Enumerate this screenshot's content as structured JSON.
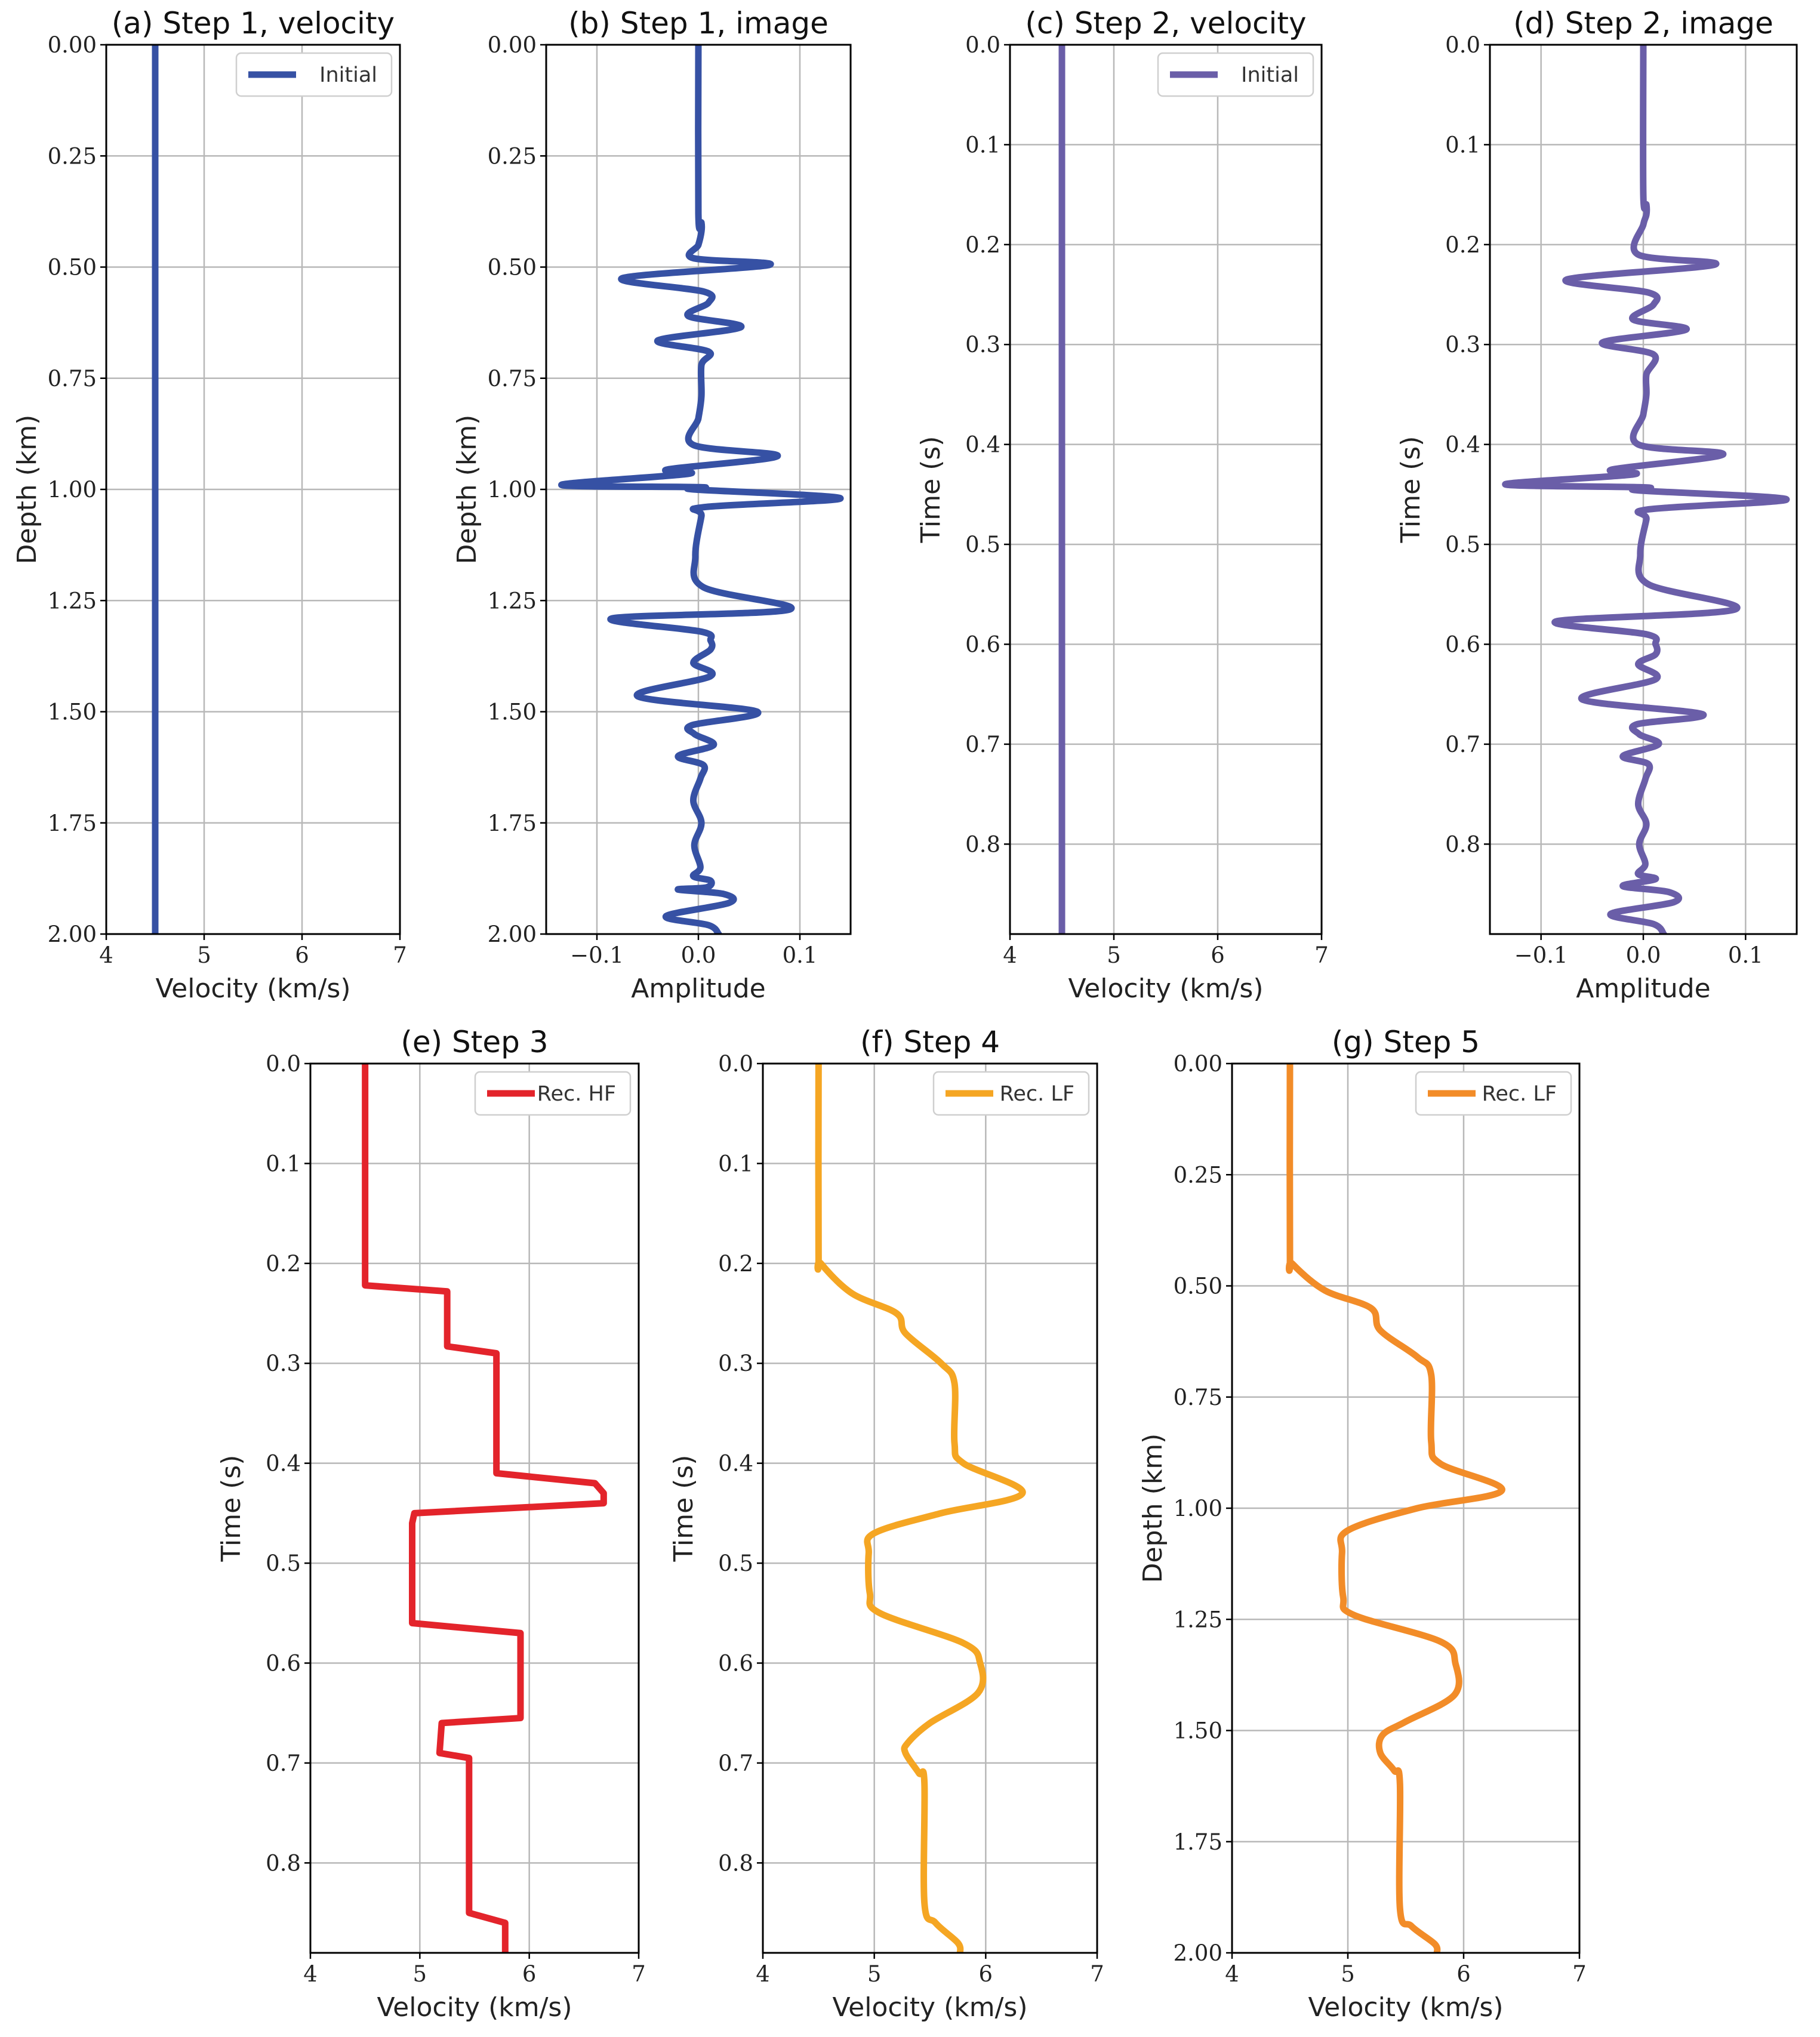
{
  "chart_data": [
    {
      "id": "a",
      "type": "line",
      "title": "(a) Step 1, velocity",
      "xlabel": "Velocity (km/s)",
      "ylabel": "Depth (km)",
      "xlim": [
        4,
        7
      ],
      "ylim": [
        0,
        2
      ],
      "invert_y": true,
      "xticks": [
        "4",
        "5",
        "6",
        "7"
      ],
      "yticks": [
        "0.00",
        "0.25",
        "0.50",
        "0.75",
        "1.00",
        "1.25",
        "1.50",
        "1.75",
        "2.00"
      ],
      "legend": "top-right",
      "grid": true,
      "series": [
        {
          "name": "Initial",
          "color": "#3651a4",
          "kind": "constant",
          "value": 4.5
        }
      ]
    },
    {
      "id": "b",
      "type": "line",
      "title": "(b) Step 1, image",
      "xlabel": "Amplitude",
      "ylabel": "Depth (km)",
      "xlim": [
        -0.15,
        0.15
      ],
      "ylim": [
        0,
        2
      ],
      "invert_y": true,
      "xticks": [
        "−0.1",
        "0.0",
        "0.1"
      ],
      "yticks": [
        "0.00",
        "0.25",
        "0.50",
        "0.75",
        "1.00",
        "1.25",
        "1.50",
        "1.75",
        "2.00"
      ],
      "grid": true,
      "series": [
        {
          "name": "",
          "color": "#3651a4",
          "kind": "wiggle",
          "points": [
            [
              0,
              0
            ],
            [
              0,
              0.38
            ],
            [
              0.003,
              0.4
            ],
            [
              0.003,
              0.42
            ],
            [
              0,
              0.45
            ],
            [
              -0.005,
              0.48
            ],
            [
              0.07,
              0.495
            ],
            [
              -0.075,
              0.525
            ],
            [
              0.005,
              0.555
            ],
            [
              0.01,
              0.58
            ],
            [
              -0.01,
              0.61
            ],
            [
              0.042,
              0.635
            ],
            [
              -0.04,
              0.665
            ],
            [
              0.01,
              0.69
            ],
            [
              0.003,
              0.72
            ],
            [
              0.003,
              0.79
            ],
            [
              0,
              0.84
            ],
            [
              -0.005,
              0.9
            ],
            [
              0.078,
              0.925
            ],
            [
              -0.03,
              0.955
            ],
            [
              -0.01,
              0.965
            ],
            [
              -0.135,
              0.99
            ],
            [
              0.002,
              0.995
            ],
            [
              -0.005,
              1.0
            ],
            [
              0.14,
              1.02
            ],
            [
              0.005,
              1.04
            ],
            [
              0.003,
              1.06
            ],
            [
              -0.003,
              1.15
            ],
            [
              0.005,
              1.22
            ],
            [
              0.09,
              1.27
            ],
            [
              -0.085,
              1.29
            ],
            [
              0.003,
              1.32
            ],
            [
              0.012,
              1.34
            ],
            [
              0.012,
              1.36
            ],
            [
              -0.005,
              1.39
            ],
            [
              0.012,
              1.42
            ],
            [
              -0.06,
              1.465
            ],
            [
              0.058,
              1.5
            ],
            [
              -0.006,
              1.53
            ],
            [
              -0.004,
              1.55
            ],
            [
              0.015,
              1.575
            ],
            [
              -0.02,
              1.6
            ],
            [
              0.005,
              1.62
            ],
            [
              0.002,
              1.65
            ],
            [
              -0.005,
              1.7
            ],
            [
              0.003,
              1.75
            ],
            [
              -0.004,
              1.8
            ],
            [
              0.002,
              1.85
            ],
            [
              -0.005,
              1.87
            ],
            [
              0.012,
              1.88
            ],
            [
              0.008,
              1.895
            ],
            [
              -0.02,
              1.9
            ],
            [
              0.025,
              1.91
            ],
            [
              0.03,
              1.93
            ],
            [
              -0.032,
              1.96
            ],
            [
              0.01,
              1.98
            ],
            [
              0.02,
              2.0
            ]
          ]
        }
      ]
    },
    {
      "id": "c",
      "type": "line",
      "title": "(c) Step 2, velocity",
      "xlabel": "Velocity (km/s)",
      "ylabel": "Time (s)",
      "xlim": [
        4,
        7
      ],
      "ylim": [
        0,
        0.89
      ],
      "invert_y": true,
      "xticks": [
        "4",
        "5",
        "6",
        "7"
      ],
      "yticks": [
        "0.0",
        "0.1",
        "0.2",
        "0.3",
        "0.4",
        "0.5",
        "0.6",
        "0.7",
        "0.8"
      ],
      "legend": "top-right",
      "grid": true,
      "series": [
        {
          "name": "Initial",
          "color": "#6a5ea8",
          "kind": "constant",
          "value": 4.5
        }
      ]
    },
    {
      "id": "d",
      "type": "line",
      "title": "(d) Step 2, image",
      "xlabel": "Amplitude",
      "ylabel": "Time (s)",
      "xlim": [
        -0.15,
        0.15
      ],
      "ylim": [
        0,
        0.89
      ],
      "invert_y": true,
      "xticks": [
        "−0.1",
        "0.0",
        "0.1"
      ],
      "yticks": [
        "0.0",
        "0.1",
        "0.2",
        "0.3",
        "0.4",
        "0.5",
        "0.6",
        "0.7",
        "0.8"
      ],
      "grid": true,
      "series": [
        {
          "name": "",
          "color": "#6a5ea8",
          "kind": "wiggle",
          "points": [
            [
              0,
              0
            ],
            [
              0,
              0.15
            ],
            [
              0.003,
              0.16
            ],
            [
              0.003,
              0.17
            ],
            [
              0,
              0.18
            ],
            [
              -0.005,
              0.21
            ],
            [
              0.07,
              0.22
            ],
            [
              -0.075,
              0.235
            ],
            [
              0.005,
              0.248
            ],
            [
              0.01,
              0.26
            ],
            [
              -0.01,
              0.275
            ],
            [
              0.042,
              0.285
            ],
            [
              -0.04,
              0.298
            ],
            [
              0.01,
              0.31
            ],
            [
              0.003,
              0.33
            ],
            [
              0.003,
              0.35
            ],
            [
              0,
              0.37
            ],
            [
              -0.005,
              0.4
            ],
            [
              0.078,
              0.41
            ],
            [
              -0.03,
              0.425
            ],
            [
              -0.01,
              0.43
            ],
            [
              -0.135,
              0.44
            ],
            [
              0.002,
              0.443
            ],
            [
              -0.005,
              0.446
            ],
            [
              0.14,
              0.455
            ],
            [
              0.005,
              0.465
            ],
            [
              0.003,
              0.475
            ],
            [
              -0.003,
              0.51
            ],
            [
              0.005,
              0.54
            ],
            [
              0.09,
              0.565
            ],
            [
              -0.085,
              0.577
            ],
            [
              0.003,
              0.59
            ],
            [
              0.012,
              0.6
            ],
            [
              0.012,
              0.61
            ],
            [
              -0.005,
              0.62
            ],
            [
              0.012,
              0.635
            ],
            [
              -0.06,
              0.655
            ],
            [
              0.058,
              0.67
            ],
            [
              -0.006,
              0.68
            ],
            [
              -0.004,
              0.69
            ],
            [
              0.015,
              0.7
            ],
            [
              -0.02,
              0.712
            ],
            [
              0.005,
              0.72
            ],
            [
              0.002,
              0.735
            ],
            [
              -0.005,
              0.76
            ],
            [
              0.003,
              0.78
            ],
            [
              -0.004,
              0.8
            ],
            [
              0.002,
              0.82
            ],
            [
              -0.005,
              0.83
            ],
            [
              0.012,
              0.835
            ],
            [
              -0.02,
              0.842
            ],
            [
              0.025,
              0.848
            ],
            [
              0.03,
              0.858
            ],
            [
              -0.032,
              0.87
            ],
            [
              0.01,
              0.88
            ],
            [
              0.02,
              0.89
            ]
          ]
        }
      ]
    },
    {
      "id": "e",
      "type": "line",
      "title": "(e) Step 3",
      "xlabel": "Velocity (km/s)",
      "ylabel": "Time (s)",
      "xlim": [
        4,
        7
      ],
      "ylim": [
        0,
        0.89
      ],
      "invert_y": true,
      "xticks": [
        "4",
        "5",
        "6",
        "7"
      ],
      "yticks": [
        "0.0",
        "0.1",
        "0.2",
        "0.3",
        "0.4",
        "0.5",
        "0.6",
        "0.7",
        "0.8"
      ],
      "legend": "top-right",
      "grid": true,
      "series": [
        {
          "name": "Rec. HF",
          "color": "#e3242b",
          "kind": "profile",
          "points": [
            [
              4.5,
              0
            ],
            [
              4.5,
              0.222
            ],
            [
              5.25,
              0.228
            ],
            [
              5.25,
              0.283
            ],
            [
              5.7,
              0.29
            ],
            [
              5.7,
              0.41
            ],
            [
              6.6,
              0.42
            ],
            [
              6.68,
              0.43
            ],
            [
              6.68,
              0.44
            ],
            [
              4.95,
              0.45
            ],
            [
              4.93,
              0.46
            ],
            [
              4.93,
              0.56
            ],
            [
              5.92,
              0.57
            ],
            [
              5.92,
              0.655
            ],
            [
              5.2,
              0.66
            ],
            [
              5.18,
              0.69
            ],
            [
              5.45,
              0.695
            ],
            [
              5.45,
              0.85
            ],
            [
              5.78,
              0.86
            ],
            [
              5.78,
              0.89
            ]
          ]
        }
      ]
    },
    {
      "id": "f",
      "type": "line",
      "title": "(f) Step 4",
      "xlabel": "Velocity (km/s)",
      "ylabel": "Time (s)",
      "xlim": [
        4,
        7
      ],
      "ylim": [
        0,
        0.89
      ],
      "invert_y": true,
      "xticks": [
        "4",
        "5",
        "6",
        "7"
      ],
      "yticks": [
        "0.0",
        "0.1",
        "0.2",
        "0.3",
        "0.4",
        "0.5",
        "0.6",
        "0.7",
        "0.8"
      ],
      "legend": "top-right",
      "grid": true,
      "series": [
        {
          "name": "Rec. LF",
          "color": "#f5a623",
          "kind": "profile",
          "smooth": true,
          "points": [
            [
              4.5,
              0
            ],
            [
              4.5,
              0.19
            ],
            [
              4.52,
              0.2
            ],
            [
              4.8,
              0.23
            ],
            [
              5.2,
              0.25
            ],
            [
              5.28,
              0.27
            ],
            [
              5.6,
              0.3
            ],
            [
              5.72,
              0.32
            ],
            [
              5.72,
              0.38
            ],
            [
              5.8,
              0.4
            ],
            [
              6.33,
              0.43
            ],
            [
              5.6,
              0.45
            ],
            [
              5.0,
              0.47
            ],
            [
              4.95,
              0.49
            ],
            [
              4.96,
              0.53
            ],
            [
              5.05,
              0.55
            ],
            [
              5.8,
              0.58
            ],
            [
              5.95,
              0.6
            ],
            [
              5.93,
              0.63
            ],
            [
              5.5,
              0.66
            ],
            [
              5.3,
              0.68
            ],
            [
              5.28,
              0.69
            ],
            [
              5.4,
              0.71
            ],
            [
              5.45,
              0.72
            ],
            [
              5.45,
              0.84
            ],
            [
              5.55,
              0.86
            ],
            [
              5.75,
              0.88
            ],
            [
              5.77,
              0.89
            ]
          ]
        }
      ]
    },
    {
      "id": "g",
      "type": "line",
      "title": "(g) Step 5",
      "xlabel": "Velocity (km/s)",
      "ylabel": "Depth (km)",
      "xlim": [
        4,
        7
      ],
      "ylim": [
        0,
        2
      ],
      "invert_y": true,
      "xticks": [
        "4",
        "5",
        "6",
        "7"
      ],
      "yticks": [
        "0.00",
        "0.25",
        "0.50",
        "0.75",
        "1.00",
        "1.25",
        "1.50",
        "1.75",
        "2.00"
      ],
      "legend": "top-right",
      "grid": true,
      "series": [
        {
          "name": "Rec. LF",
          "color": "#f28c28",
          "kind": "profile",
          "smooth": true,
          "points": [
            [
              4.5,
              0
            ],
            [
              4.5,
              0.43
            ],
            [
              4.52,
              0.45
            ],
            [
              4.8,
              0.51
            ],
            [
              5.2,
              0.55
            ],
            [
              5.28,
              0.6
            ],
            [
              5.6,
              0.66
            ],
            [
              5.72,
              0.7
            ],
            [
              5.72,
              0.85
            ],
            [
              5.8,
              0.9
            ],
            [
              6.33,
              0.96
            ],
            [
              5.6,
              1.0
            ],
            [
              5.0,
              1.05
            ],
            [
              4.95,
              1.1
            ],
            [
              4.96,
              1.2
            ],
            [
              5.05,
              1.24
            ],
            [
              5.8,
              1.3
            ],
            [
              5.93,
              1.35
            ],
            [
              5.92,
              1.42
            ],
            [
              5.5,
              1.48
            ],
            [
              5.3,
              1.51
            ],
            [
              5.28,
              1.55
            ],
            [
              5.4,
              1.59
            ],
            [
              5.45,
              1.62
            ],
            [
              5.45,
              1.9
            ],
            [
              5.55,
              1.94
            ],
            [
              5.75,
              1.98
            ],
            [
              5.77,
              2.0
            ]
          ]
        }
      ]
    }
  ]
}
